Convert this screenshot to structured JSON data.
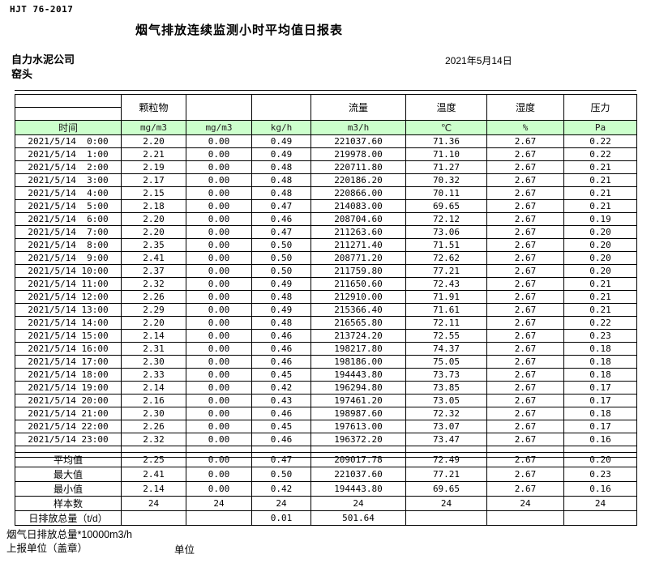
{
  "page": {
    "standard": "HJT  76-2017",
    "title": "烟气排放连续监测小时平均值日报表",
    "company": "自力水泥公司",
    "station": "窑头",
    "date": "2021年5月14日"
  },
  "colors": {
    "header_green": "#ccffcc",
    "border": "#000000"
  },
  "table": {
    "group_headers": [
      "",
      "颗粒物",
      "",
      "",
      "流量",
      "温度",
      "湿度",
      "压力"
    ],
    "unit_row": [
      "时间",
      "mg/m3",
      "mg/m3",
      "kg/h",
      "m3/h",
      "℃",
      "%",
      "Pa"
    ],
    "rows": [
      [
        "2021/5/14  0:00",
        "2.20",
        "0.00",
        "0.49",
        "221037.60",
        "71.36",
        "2.67",
        "0.22"
      ],
      [
        "2021/5/14  1:00",
        "2.21",
        "0.00",
        "0.49",
        "219978.00",
        "71.10",
        "2.67",
        "0.22"
      ],
      [
        "2021/5/14  2:00",
        "2.19",
        "0.00",
        "0.48",
        "220711.80",
        "71.27",
        "2.67",
        "0.21"
      ],
      [
        "2021/5/14  3:00",
        "2.17",
        "0.00",
        "0.48",
        "220186.20",
        "70.32",
        "2.67",
        "0.21"
      ],
      [
        "2021/5/14  4:00",
        "2.15",
        "0.00",
        "0.48",
        "220866.00",
        "70.11",
        "2.67",
        "0.21"
      ],
      [
        "2021/5/14  5:00",
        "2.18",
        "0.00",
        "0.47",
        "214083.00",
        "69.65",
        "2.67",
        "0.21"
      ],
      [
        "2021/5/14  6:00",
        "2.20",
        "0.00",
        "0.46",
        "208704.60",
        "72.12",
        "2.67",
        "0.19"
      ],
      [
        "2021/5/14  7:00",
        "2.20",
        "0.00",
        "0.47",
        "211263.60",
        "73.06",
        "2.67",
        "0.20"
      ],
      [
        "2021/5/14  8:00",
        "2.35",
        "0.00",
        "0.50",
        "211271.40",
        "71.51",
        "2.67",
        "0.20"
      ],
      [
        "2021/5/14  9:00",
        "2.41",
        "0.00",
        "0.50",
        "208771.20",
        "72.62",
        "2.67",
        "0.20"
      ],
      [
        "2021/5/14 10:00",
        "2.37",
        "0.00",
        "0.50",
        "211759.80",
        "77.21",
        "2.67",
        "0.20"
      ],
      [
        "2021/5/14 11:00",
        "2.32",
        "0.00",
        "0.49",
        "211650.60",
        "72.43",
        "2.67",
        "0.21"
      ],
      [
        "2021/5/14 12:00",
        "2.26",
        "0.00",
        "0.48",
        "212910.00",
        "71.91",
        "2.67",
        "0.21"
      ],
      [
        "2021/5/14 13:00",
        "2.29",
        "0.00",
        "0.49",
        "215366.40",
        "71.61",
        "2.67",
        "0.21"
      ],
      [
        "2021/5/14 14:00",
        "2.20",
        "0.00",
        "0.48",
        "216565.80",
        "72.11",
        "2.67",
        "0.22"
      ],
      [
        "2021/5/14 15:00",
        "2.14",
        "0.00",
        "0.46",
        "213724.20",
        "72.55",
        "2.67",
        "0.23"
      ],
      [
        "2021/5/14 16:00",
        "2.31",
        "0.00",
        "0.46",
        "198217.80",
        "74.37",
        "2.67",
        "0.18"
      ],
      [
        "2021/5/14 17:00",
        "2.30",
        "0.00",
        "0.46",
        "198186.00",
        "75.05",
        "2.67",
        "0.18"
      ],
      [
        "2021/5/14 18:00",
        "2.33",
        "0.00",
        "0.45",
        "194443.80",
        "73.73",
        "2.67",
        "0.18"
      ],
      [
        "2021/5/14 19:00",
        "2.14",
        "0.00",
        "0.42",
        "196294.80",
        "73.85",
        "2.67",
        "0.17"
      ],
      [
        "2021/5/14 20:00",
        "2.16",
        "0.00",
        "0.43",
        "197461.20",
        "73.05",
        "2.67",
        "0.17"
      ],
      [
        "2021/5/14 21:00",
        "2.30",
        "0.00",
        "0.46",
        "198987.60",
        "72.32",
        "2.67",
        "0.18"
      ],
      [
        "2021/5/14 22:00",
        "2.26",
        "0.00",
        "0.45",
        "197613.00",
        "73.07",
        "2.67",
        "0.17"
      ],
      [
        "2021/5/14 23:00",
        "2.32",
        "0.00",
        "0.46",
        "196372.20",
        "73.47",
        "2.67",
        "0.16"
      ]
    ],
    "summary_rows": [
      [
        "平均值",
        "2.25",
        "0.00",
        "0.47",
        "209017.78",
        "72.49",
        "2.67",
        "0.20"
      ],
      [
        "最大值",
        "2.41",
        "0.00",
        "0.50",
        "221037.60",
        "77.21",
        "2.67",
        "0.23"
      ],
      [
        "最小值",
        "2.14",
        "0.00",
        "0.42",
        "194443.80",
        "69.65",
        "2.67",
        "0.16"
      ],
      [
        "样本数",
        "24",
        "24",
        "24",
        "24",
        "24",
        "24",
        "24"
      ],
      [
        "日排放总量（t/d）",
        "",
        "",
        "0.01",
        "501.64",
        "",
        "",
        ""
      ]
    ]
  },
  "footer": {
    "note": "烟气日排放总量*10000m3/h",
    "report_unit_label": "上报单位（盖章）",
    "unit_label": "单位"
  }
}
